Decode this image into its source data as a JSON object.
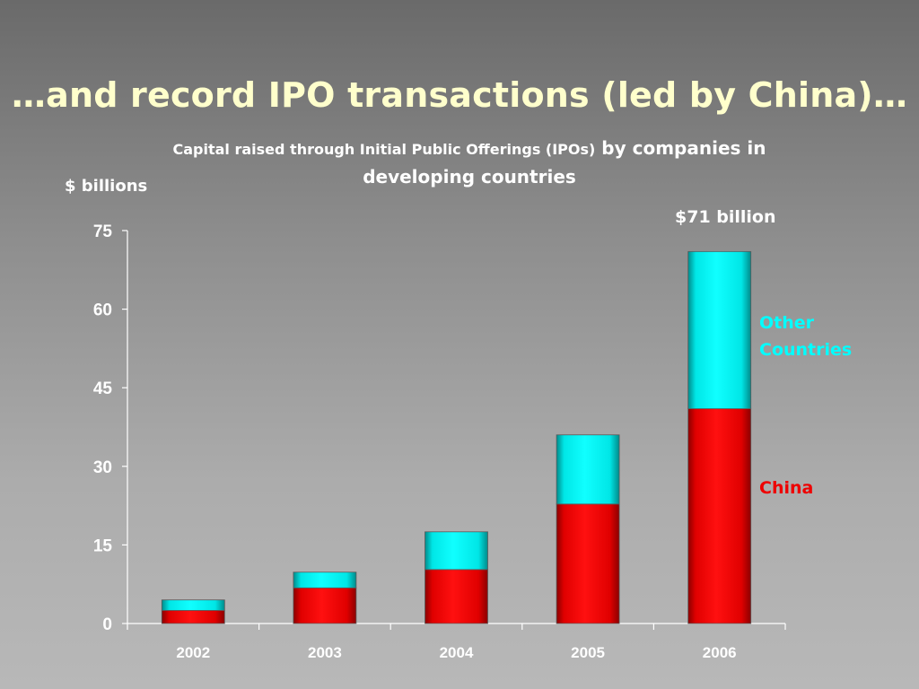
{
  "slide": {
    "title": "…and record IPO transactions (led by China)…",
    "subtitle_part1": "Capital raised through Initial Public Offerings (IPOs)",
    "subtitle_part2": " by companies in developing countries",
    "unit_label": "$ billions",
    "total_annotation": "$71 billion"
  },
  "legend": {
    "other_line1": "Other",
    "other_line2": "Countries",
    "china": "China"
  },
  "colors": {
    "china": "#ff0000",
    "other": "#00ffff",
    "title": "#ffffcc"
  },
  "chart_data": {
    "type": "bar",
    "stacked": true,
    "categories": [
      "2002",
      "2003",
      "2004",
      "2005",
      "2006"
    ],
    "series": [
      {
        "name": "China",
        "values": [
          2.5,
          6.8,
          10.3,
          22.8,
          41
        ]
      },
      {
        "name": "Other Countries",
        "values": [
          2.0,
          3.0,
          7.2,
          13.2,
          30
        ]
      }
    ],
    "ylim": [
      0,
      75
    ],
    "yticks": [
      0,
      15,
      30,
      45,
      60,
      75
    ],
    "ylabel": "$ billions",
    "xlabel": "",
    "grid": false
  }
}
